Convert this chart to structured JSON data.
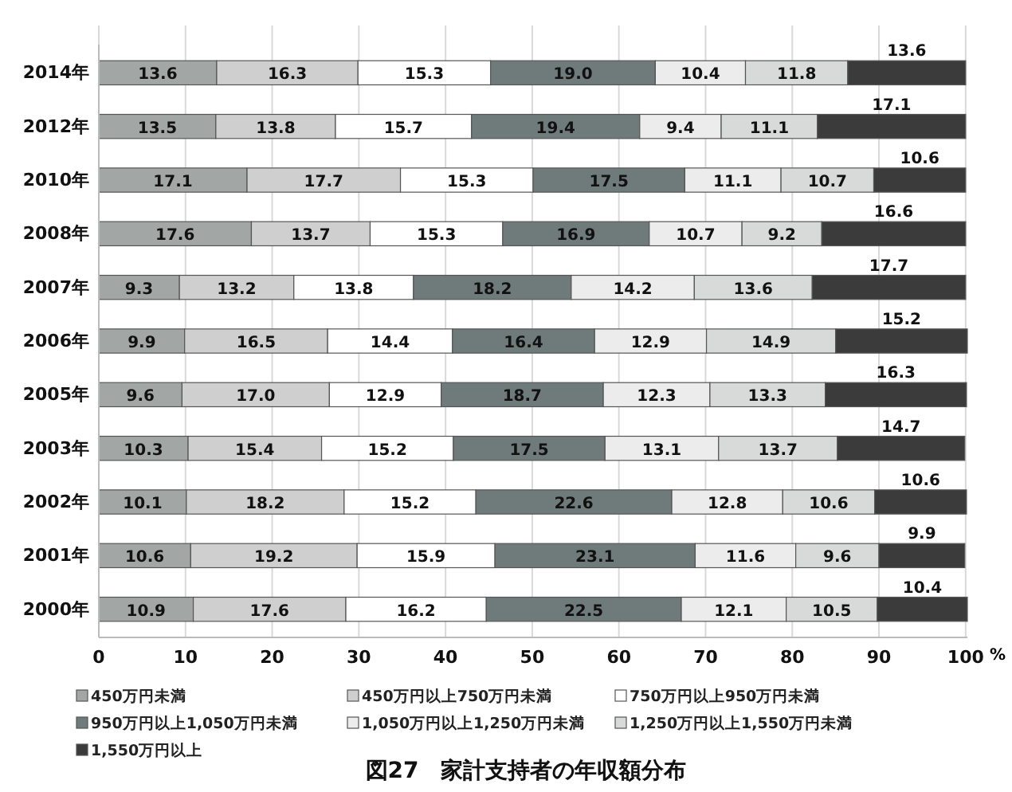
{
  "chart_data": {
    "type": "bar",
    "orientation": "horizontal",
    "stacked": true,
    "grid": "x",
    "legend": "bottom",
    "title": "図27　家計支持者の年収額分布",
    "xlabel": "%",
    "categories": [
      "2014年",
      "2012年",
      "2010年",
      "2008年",
      "2007年",
      "2006年",
      "2005年",
      "2003年",
      "2002年",
      "2001年",
      "2000年"
    ],
    "xlim": [
      0,
      100.2
    ],
    "xticks": [
      0,
      10,
      20,
      30,
      40,
      50,
      60,
      70,
      80,
      90,
      100
    ],
    "series": [
      {
        "name": "450万円未満",
        "color": "#a2a6a5",
        "values": [
          13.6,
          13.5,
          17.1,
          17.6,
          9.3,
          9.9,
          9.6,
          10.3,
          10.1,
          10.6,
          10.9
        ],
        "value_labels": [
          "13.6",
          "13.5",
          "17.1",
          "17.6",
          "9.3",
          "9.9",
          "9.6",
          "10.3",
          "10.1",
          "10.6",
          "10.9"
        ]
      },
      {
        "name": "450万円以上750万円未満",
        "color": "#cfcfcf",
        "values": [
          16.3,
          13.8,
          17.7,
          13.7,
          13.2,
          16.5,
          17.0,
          15.4,
          18.2,
          19.2,
          17.6
        ],
        "value_labels": [
          "16.3",
          "13.8",
          "17.7",
          "13.7",
          "13.2",
          "16.5",
          "17.0",
          "15.4",
          "18.2",
          "19.2",
          "17.6"
        ]
      },
      {
        "name": "750万円以上950万円未満",
        "color": "#ffffff",
        "values": [
          15.3,
          15.7,
          15.3,
          15.3,
          13.8,
          14.4,
          12.9,
          15.2,
          15.2,
          15.9,
          16.2
        ],
        "value_labels": [
          "15.3",
          "15.7",
          "15.3",
          "15.3",
          "13.8",
          "14.4",
          "12.9",
          "15.2",
          "15.2",
          "15.9",
          "16.2"
        ]
      },
      {
        "name": "950万円以上1,050万円未満",
        "color": "#6f7a7a",
        "values": [
          19.0,
          19.4,
          17.5,
          16.9,
          18.2,
          16.4,
          18.7,
          17.5,
          22.6,
          23.1,
          22.5
        ],
        "value_labels": [
          "19.0",
          "19.4",
          "17.5",
          "16.9",
          "18.2",
          "16.4",
          "18.7",
          "17.5",
          "22.6",
          "23.1",
          "22.5"
        ]
      },
      {
        "name": "1,050万円以上1,250万円未満",
        "color": "#ececec",
        "values": [
          10.4,
          9.4,
          11.1,
          10.7,
          14.2,
          12.9,
          12.3,
          13.1,
          12.8,
          11.6,
          12.1
        ],
        "value_labels": [
          "10.4",
          "9.4",
          "11.1",
          "10.7",
          "14.2",
          "12.9",
          "12.3",
          "13.1",
          "12.8",
          "11.6",
          "12.1"
        ]
      },
      {
        "name": "1,250万円以上1,550万円未満",
        "color": "#d8dada",
        "values": [
          11.8,
          11.1,
          10.7,
          9.2,
          13.6,
          14.9,
          13.3,
          13.7,
          10.6,
          9.6,
          10.5
        ],
        "value_labels": [
          "11.8",
          "11.1",
          "10.7",
          "9.2",
          "13.6",
          "14.9",
          "13.3",
          "13.7",
          "10.6",
          "9.6",
          "10.5"
        ]
      },
      {
        "name": "1,550万円以上",
        "color": "#3b3b3b",
        "values": [
          13.6,
          17.1,
          10.6,
          16.6,
          17.7,
          15.2,
          16.3,
          14.7,
          10.6,
          9.9,
          10.4
        ],
        "value_labels": [
          "13.6",
          "17.1",
          "10.6",
          "16.6",
          "17.7",
          "15.2",
          "16.3",
          "14.7",
          "10.6",
          "9.9",
          "10.4"
        ]
      }
    ]
  }
}
